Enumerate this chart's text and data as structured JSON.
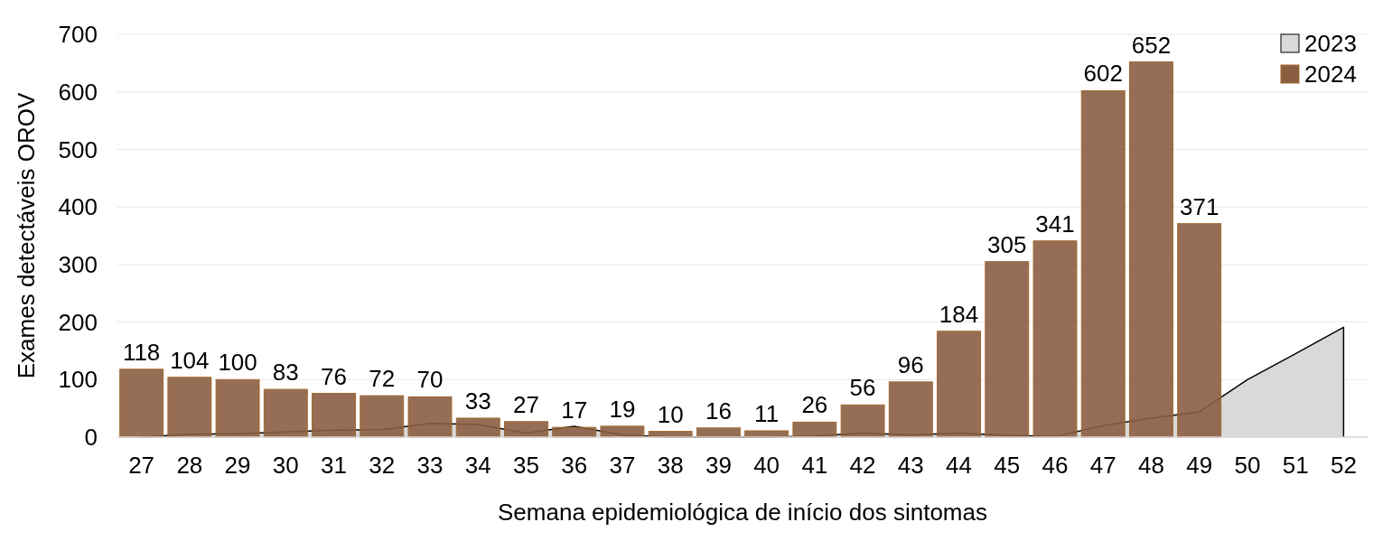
{
  "chart_data": {
    "type": "bar",
    "xlabel": "Semana epidemiológica de início dos sintomas",
    "ylabel": "Exames detectáveis OROV",
    "categories": [
      "27",
      "28",
      "29",
      "30",
      "31",
      "32",
      "33",
      "34",
      "35",
      "36",
      "37",
      "38",
      "39",
      "40",
      "41",
      "42",
      "43",
      "44",
      "45",
      "46",
      "47",
      "48",
      "49",
      "50",
      "51",
      "52"
    ],
    "series": [
      {
        "name": "2023",
        "type": "area",
        "color": "#d9d9d9",
        "values": [
          0,
          5,
          6,
          9,
          12,
          13,
          24,
          22,
          7,
          19,
          4,
          0,
          0,
          0,
          2,
          7,
          4,
          7,
          3,
          1,
          20,
          33,
          44,
          100,
          145,
          191
        ]
      },
      {
        "name": "2024",
        "color": "#8b5e42",
        "values": [
          118,
          104,
          100,
          83,
          76,
          72,
          70,
          33,
          27,
          17,
          19,
          10,
          16,
          11,
          26,
          56,
          96,
          184,
          305,
          341,
          602,
          652,
          371,
          null,
          null,
          null
        ],
        "data_labels": true
      }
    ],
    "ylim": [
      0,
      700
    ],
    "yticks": [
      0,
      100,
      200,
      300,
      400,
      500,
      600,
      700
    ],
    "grid": "y",
    "legend": "top right"
  }
}
